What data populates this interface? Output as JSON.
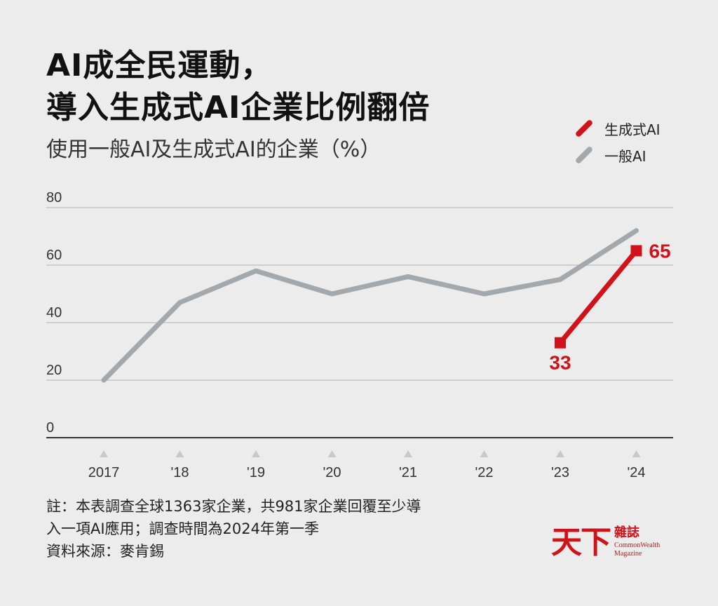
{
  "header": {
    "title_line1": "AI成全民運動，",
    "title_line2": "導入生成式AI企業比例翻倍",
    "subtitle": "使用一般AI及生成式AI的企業（%）"
  },
  "legend": {
    "items": [
      {
        "label": "生成式AI",
        "color": "#d0121b"
      },
      {
        "label": "一般AI",
        "color": "#a3a8ad"
      }
    ]
  },
  "chart_data": {
    "type": "line",
    "categories": [
      "2017",
      "'18",
      "'19",
      "'20",
      "'21",
      "'22",
      "'23",
      "'24"
    ],
    "series": [
      {
        "name": "一般AI",
        "color": "#a3a8ad",
        "values": [
          20,
          47,
          58,
          50,
          56,
          50,
          55,
          72
        ]
      },
      {
        "name": "生成式AI",
        "color": "#d0121b",
        "values": [
          null,
          null,
          null,
          null,
          null,
          null,
          33,
          65
        ]
      }
    ],
    "data_labels": [
      {
        "series": "生成式AI",
        "category": "'23",
        "text": "33"
      },
      {
        "series": "生成式AI",
        "category": "'24",
        "text": "65"
      }
    ],
    "yticks": [
      "0",
      "20",
      "40",
      "60",
      "80"
    ],
    "ylim": [
      0,
      80
    ],
    "grid": true,
    "legend_position": "top-right"
  },
  "footer": {
    "note_line1": "註：本表調查全球1363家企業，共981家企業回覆至少導",
    "note_line2": "入一項AI應用；調查時間為2024年第一季",
    "source": "資料來源：麥肯錫"
  },
  "logo": {
    "main": "天下",
    "zh": "雜誌",
    "en_line1": "CommonWealth",
    "en_line2": "Magazine"
  }
}
